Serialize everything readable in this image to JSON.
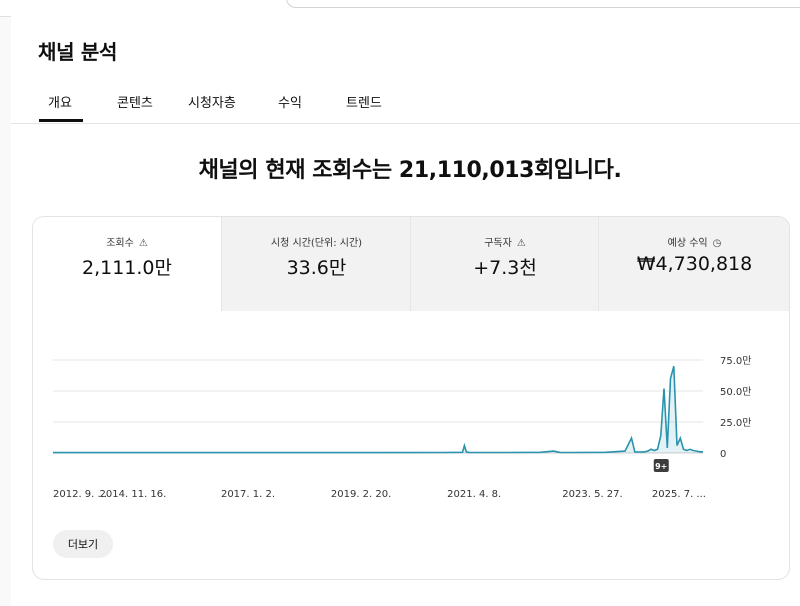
{
  "page": {
    "title": "채널 분석",
    "tabs": [
      {
        "label": "개요",
        "active": true
      },
      {
        "label": "콘텐츠",
        "active": false
      },
      {
        "label": "시청자층",
        "active": false
      },
      {
        "label": "수익",
        "active": false
      },
      {
        "label": "트렌드",
        "active": false
      }
    ],
    "headline": "채널의 현재 조회수는 21,110,013회입니다."
  },
  "metrics": [
    {
      "label": "조회수",
      "value": "2,111.0만",
      "icon": "warning-icon",
      "active": true
    },
    {
      "label": "시청 시간(단위: 시간)",
      "value": "33.6만",
      "icon": "",
      "active": false
    },
    {
      "label": "구독자",
      "value": "+7.3천",
      "icon": "warning-icon",
      "active": false
    },
    {
      "label": "예상 수익",
      "value": "₩4,730,818",
      "icon": "clock-icon",
      "active": false
    }
  ],
  "more_button": "더보기",
  "colors": {
    "line": "#2a93ad",
    "accent": "#0f0f0f",
    "grid": "#e6e6e6"
  },
  "chart_data": {
    "type": "line",
    "title": "",
    "xlabel": "",
    "ylabel": "",
    "y_unit": "만",
    "ylim": [
      0,
      75
    ],
    "y_ticks": [
      "0",
      "25.0만",
      "50.0만",
      "75.0만"
    ],
    "y_tick_values": [
      0,
      25,
      50,
      75
    ],
    "x_tick_labels": [
      "2012. 9. ...",
      "2014. 11. 16.",
      "2017. 1. 2.",
      "2019. 2. 20.",
      "2021. 4. 8.",
      "2023. 5. 27.",
      "2025. 7. ..."
    ],
    "x_tick_values": [
      0.0,
      0.123,
      0.3,
      0.474,
      0.648,
      0.83,
      0.963
    ],
    "annotation": "9+",
    "annotation_x": 0.935,
    "series": [
      {
        "x": [
          0,
          0.1,
          0.2,
          0.3,
          0.4,
          0.5,
          0.6,
          0.63,
          0.633,
          0.636,
          0.64,
          0.7,
          0.75,
          0.77,
          0.78,
          0.8,
          0.85,
          0.88,
          0.89,
          0.895,
          0.9,
          0.905,
          0.91,
          0.915,
          0.92,
          0.925,
          0.93,
          0.935,
          0.94,
          0.945,
          0.95,
          0.955,
          0.96,
          0.965,
          0.97,
          0.975,
          0.98,
          0.985,
          0.99,
          0.995,
          1.0
        ],
        "y": [
          0.3,
          0.3,
          0.3,
          0.3,
          0.3,
          0.3,
          0.4,
          0.6,
          6,
          0.8,
          0.5,
          0.4,
          0.6,
          1.5,
          0.5,
          0.4,
          0.6,
          1.5,
          12,
          1.0,
          0.8,
          0.9,
          1.0,
          1.5,
          3,
          2,
          3,
          14,
          52,
          4,
          60,
          70,
          6,
          12,
          3,
          2,
          3,
          2,
          1.5,
          1.0,
          1.0
        ]
      }
    ]
  }
}
